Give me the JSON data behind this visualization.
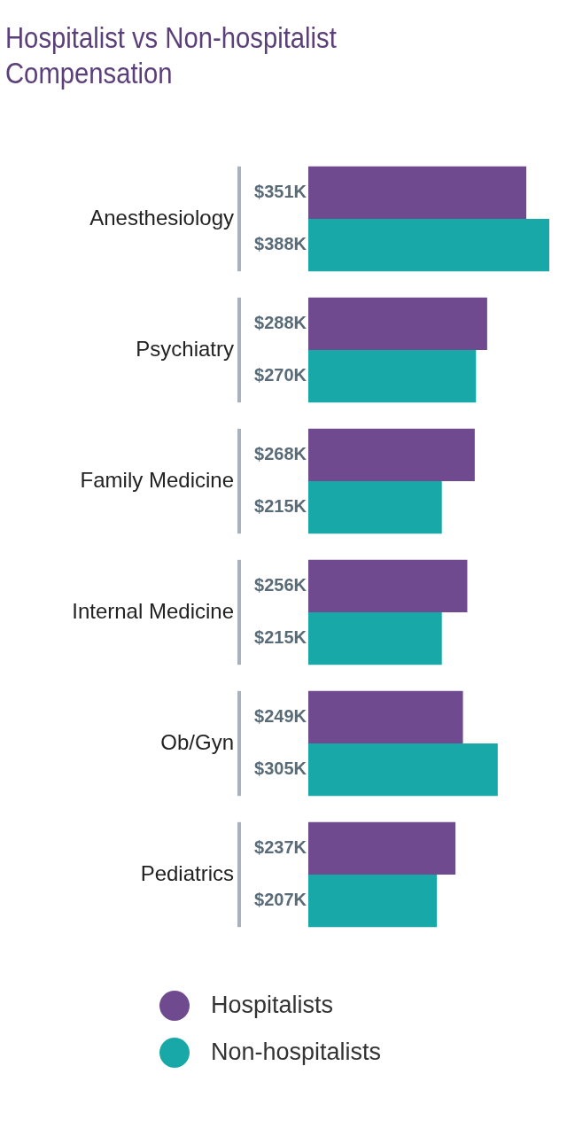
{
  "chart_data": {
    "type": "bar",
    "orientation": "horizontal",
    "title": "Hospitalist vs Non-hospitalist Compensation",
    "legend": "bottom",
    "categories": [
      "Anesthesiology",
      "Psychiatry",
      "Family Medicine",
      "Internal Medicine",
      "Ob/Gyn",
      "Pediatrics"
    ],
    "series": [
      {
        "name": "Hospitalists",
        "color": "#6f4a8e",
        "values": [
          351,
          288,
          268,
          256,
          249,
          237
        ],
        "value_labels": [
          "$351K",
          "$288K",
          "$268K",
          "$256K",
          "$249K",
          "$237K"
        ]
      },
      {
        "name": "Non-hospitalists",
        "color": "#18a8a8",
        "values": [
          388,
          270,
          215,
          215,
          305,
          207
        ],
        "value_labels": [
          "$388K",
          "$270K",
          "$215K",
          "$215K",
          "$305K",
          "$207K"
        ]
      }
    ]
  }
}
